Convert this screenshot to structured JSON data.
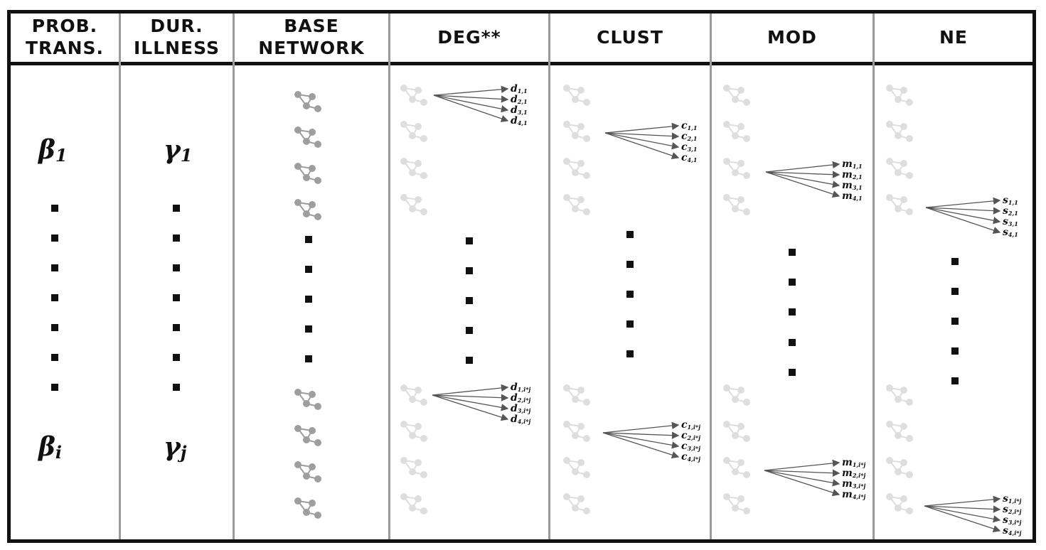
{
  "headers": {
    "prob_trans": [
      "PROB.",
      "TRANS."
    ],
    "dur_illness": [
      "DUR.",
      "ILLNESS"
    ],
    "base_network": [
      "BASE",
      "NETWORK"
    ],
    "deg": "DEG**",
    "clust": "CLUST",
    "mod": "MOD",
    "ne": "NE"
  },
  "params": {
    "beta_symbol": "β",
    "beta_first_sub": "1",
    "beta_last_sub": "i",
    "gamma_symbol": "γ",
    "gamma_first_sub": "1",
    "gamma_last_sub": "j"
  },
  "outputs": {
    "deg": {
      "letter": "d",
      "first": [
        "1,1",
        "2,1",
        "3,1",
        "4,1"
      ],
      "last": [
        "1,i*j",
        "2,i*j",
        "3,i*j",
        "4,i*j"
      ]
    },
    "clust": {
      "letter": "c",
      "first": [
        "1,1",
        "2,1",
        "3,1",
        "4,1"
      ],
      "last": [
        "1,i*j",
        "2,i*j",
        "3,i*j",
        "4,i*j"
      ]
    },
    "mod": {
      "letter": "m",
      "first": [
        "1,1",
        "2,1",
        "3,1",
        "4,1"
      ],
      "last": [
        "1,i*j",
        "2,i*j",
        "3,i*j",
        "4,i*j"
      ]
    },
    "ne": {
      "letter": "s",
      "first": [
        "1,1",
        "2,1",
        "3,1",
        "4,1"
      ],
      "last": [
        "1,i*j",
        "2,i*j",
        "3,i*j",
        "4,i*j"
      ]
    }
  },
  "colors": {
    "border": "#111111",
    "divider": "#9a9a9a",
    "network_dark": "#9e9e9e",
    "network_light": "#dedede",
    "arrow": "#555555"
  }
}
